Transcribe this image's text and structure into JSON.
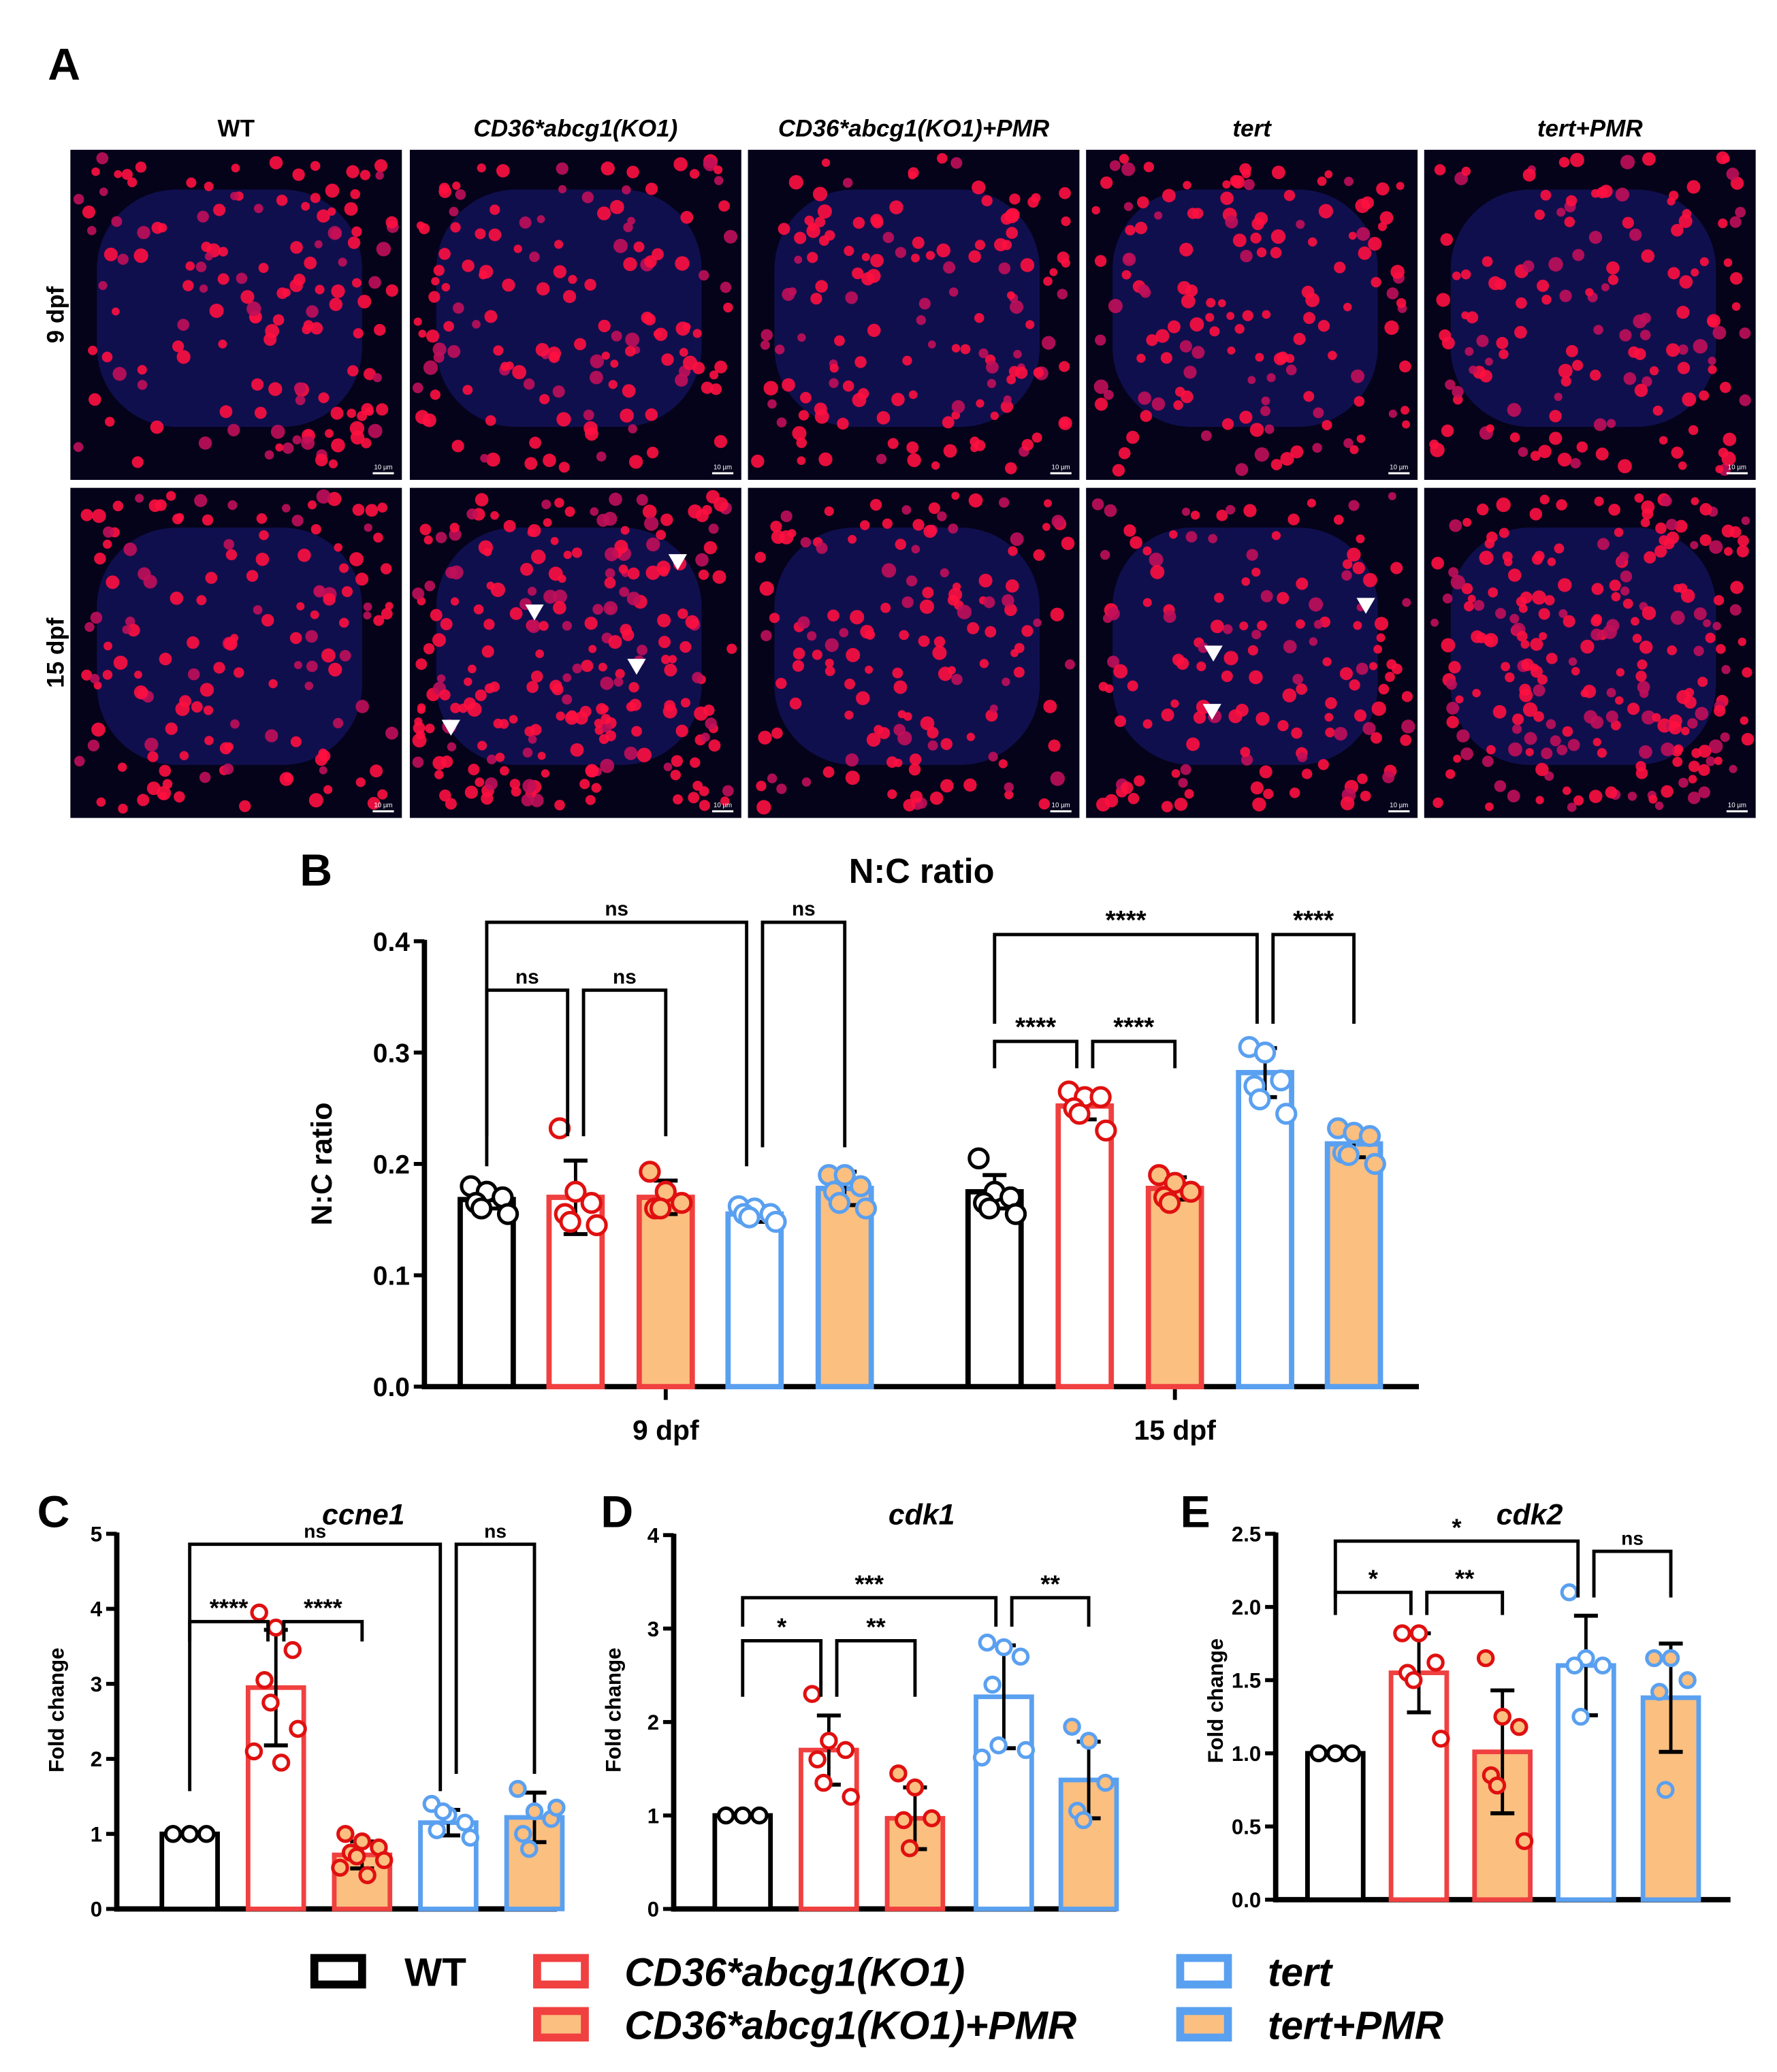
{
  "panel_letters": {
    "a": "A",
    "b": "B",
    "c": "C",
    "d": "D",
    "e": "E"
  },
  "micrographs": {
    "columns": [
      "WT",
      "CD36*abcg1(KO1)",
      "CD36*abcg1(KO1)+PMR",
      "tert",
      "tert+PMR"
    ],
    "column_italic_part": [
      "",
      "CD36*abcg1(KO1)",
      "CD36*abcg1(KO1)",
      "tert",
      "tert"
    ],
    "rows": [
      "9 dpf",
      "15 dpf"
    ],
    "scale_bar": "10 µm",
    "arrowheads_present": [
      [
        false,
        false,
        false,
        false,
        false
      ],
      [
        false,
        true,
        false,
        true,
        false
      ]
    ]
  },
  "groups": [
    {
      "name": "WT",
      "stroke": "#000000",
      "fill": "#ffffff"
    },
    {
      "name": "CD36*abcg1(KO1)",
      "stroke": "#f04040",
      "fill": "#ffffff"
    },
    {
      "name": "CD36*abcg1(KO1)+PMR",
      "stroke": "#f04040",
      "fill": "#fbbf80"
    },
    {
      "name": "tert",
      "stroke": "#5aa0f0",
      "fill": "#ffffff"
    },
    {
      "name": "tert+PMR",
      "stroke": "#5aa0f0",
      "fill": "#fbbf80"
    }
  ],
  "legend": [
    "WT",
    "CD36*abcg1(KO1)",
    "tert",
    "CD36*abcg1(KO1)+PMR",
    "tert+PMR"
  ],
  "chart_data": [
    {
      "id": "B",
      "type": "bar",
      "title": "N:C ratio",
      "ylabel": "N:C ratio",
      "xlabel": "",
      "categories": [
        "9 dpf",
        "15 dpf"
      ],
      "ylim": [
        0,
        0.4
      ],
      "yticks": [
        "0.0",
        "0.1",
        "0.2",
        "0.3",
        "0.4"
      ],
      "series": [
        {
          "name": "WT",
          "means": [
            0.168,
            0.175
          ],
          "err": [
            0.008,
            0.015
          ],
          "points": [
            [
              0.18,
              0.175,
              0.17,
              0.165,
              0.16,
              0.155
            ],
            [
              0.205,
              0.175,
              0.17,
              0.165,
              0.16,
              0.155
            ]
          ]
        },
        {
          "name": "CD36*abcg1(KO1)",
          "means": [
            0.17,
            0.252
          ],
          "err": [
            0.033,
            0.012
          ],
          "points": [
            [
              0.232,
              0.175,
              0.165,
              0.155,
              0.148,
              0.145
            ],
            [
              0.265,
              0.26,
              0.26,
              0.25,
              0.245,
              0.23
            ]
          ]
        },
        {
          "name": "CD36*abcg1(KO1)+PMR",
          "means": [
            0.17,
            0.178
          ],
          "err": [
            0.015,
            0.01
          ],
          "points": [
            [
              0.193,
              0.175,
              0.165,
              0.16,
              0.16
            ],
            [
              0.19,
              0.183,
              0.175,
              0.17,
              0.165
            ]
          ]
        },
        {
          "name": "tert",
          "means": [
            0.155,
            0.282
          ],
          "err": [
            0.007,
            0.022
          ],
          "points": [
            [
              0.162,
              0.16,
              0.155,
              0.155,
              0.152,
              0.148
            ],
            [
              0.305,
              0.3,
              0.275,
              0.27,
              0.258,
              0.245
            ]
          ]
        },
        {
          "name": "tert+PMR",
          "means": [
            0.178,
            0.218
          ],
          "err": [
            0.015,
            0.012
          ],
          "points": [
            [
              0.19,
              0.19,
              0.18,
              0.175,
              0.165,
              0.16
            ],
            [
              0.232,
              0.228,
              0.225,
              0.21,
              0.208,
              0.2
            ]
          ]
        }
      ],
      "brackets": [
        {
          "from": [
            0,
            0
          ],
          "to": [
            0,
            1
          ],
          "level": 0.356,
          "label": "ns"
        },
        {
          "from": [
            0,
            1
          ],
          "to": [
            0,
            2
          ],
          "level": 0.356,
          "label": "ns"
        },
        {
          "from": [
            0,
            0
          ],
          "to": [
            0,
            3
          ],
          "level": 0.417,
          "label": "ns"
        },
        {
          "from": [
            0,
            3
          ],
          "to": [
            0,
            4
          ],
          "level": 0.417,
          "label": "ns"
        },
        {
          "from": [
            1,
            0
          ],
          "to": [
            1,
            3
          ],
          "level": 0.406,
          "label": "****"
        },
        {
          "from": [
            1,
            3
          ],
          "to": [
            1,
            4
          ],
          "level": 0.406,
          "label": "****"
        },
        {
          "from": [
            1,
            0
          ],
          "to": [
            1,
            1
          ],
          "level": 0.31,
          "label": "****"
        },
        {
          "from": [
            1,
            1
          ],
          "to": [
            1,
            2
          ],
          "level": 0.31,
          "label": "****"
        }
      ]
    },
    {
      "id": "C",
      "type": "bar",
      "title": "ccne1",
      "ylabel": "Fold change",
      "ylim": [
        0,
        5
      ],
      "yticks": [
        "0",
        "1",
        "2",
        "3",
        "4",
        "5"
      ],
      "means": [
        1.0,
        2.95,
        0.72,
        1.15,
        1.22
      ],
      "err": [
        0,
        0.77,
        0.18,
        0.17,
        0.33
      ],
      "points": [
        [
          1,
          1,
          1
        ],
        [
          3.95,
          3.75,
          3.45,
          3.05,
          2.75,
          2.4,
          2.1,
          1.95
        ],
        [
          1.0,
          0.9,
          0.82,
          0.75,
          0.7,
          0.65,
          0.55,
          0.45
        ],
        [
          1.4,
          1.25,
          1.15,
          1.05,
          1.3,
          0.95
        ],
        [
          1.6,
          1.3,
          1.2,
          1.0,
          0.8,
          1.35
        ]
      ],
      "brackets": [
        {
          "from": 0,
          "to": 3,
          "level": 4.86,
          "label": "ns"
        },
        {
          "from": 3,
          "to": 4,
          "level": 4.86,
          "label": "ns"
        },
        {
          "from": 0,
          "to": 1,
          "level": 3.83,
          "label": "****"
        },
        {
          "from": 1,
          "to": 2,
          "level": 3.83,
          "label": "****"
        }
      ]
    },
    {
      "id": "D",
      "type": "bar",
      "title": "cdk1",
      "ylabel": "Fold change",
      "ylim": [
        0,
        4
      ],
      "yticks": [
        "0",
        "1",
        "2",
        "3",
        "4"
      ],
      "means": [
        1.0,
        1.7,
        0.97,
        2.27,
        1.38
      ],
      "err": [
        0,
        0.37,
        0.33,
        0.55,
        0.41
      ],
      "points": [
        [
          1,
          1,
          1
        ],
        [
          2.3,
          1.8,
          1.7,
          1.6,
          1.35,
          1.2
        ],
        [
          1.45,
          1.3,
          0.97,
          0.95,
          0.65
        ],
        [
          2.85,
          2.8,
          2.7,
          2.4,
          1.75,
          1.7,
          1.62
        ],
        [
          1.95,
          1.8,
          1.35,
          1.05,
          0.95
        ]
      ],
      "brackets": [
        {
          "from": 0,
          "to": 3,
          "level": 3.33,
          "label": "***"
        },
        {
          "from": 3,
          "to": 4,
          "level": 3.33,
          "label": "**"
        },
        {
          "from": 0,
          "to": 1,
          "level": 2.87,
          "label": "*"
        },
        {
          "from": 1,
          "to": 2,
          "level": 2.87,
          "label": "**"
        }
      ]
    },
    {
      "id": "E",
      "type": "bar",
      "title": "cdk2",
      "ylabel": "Fold change",
      "ylim": [
        0,
        2.5
      ],
      "yticks": [
        "0.0",
        "0.5",
        "1.0",
        "1.5",
        "2.0",
        "2.5"
      ],
      "means": [
        1.0,
        1.55,
        1.01,
        1.6,
        1.38
      ],
      "err": [
        0,
        0.27,
        0.42,
        0.34,
        0.37
      ],
      "points": [
        [
          1,
          1,
          1
        ],
        [
          1.82,
          1.82,
          1.62,
          1.55,
          1.5,
          1.1
        ],
        [
          1.65,
          1.25,
          1.18,
          0.85,
          0.78,
          0.4
        ],
        [
          2.1,
          1.65,
          1.6,
          1.6,
          1.25
        ],
        [
          1.65,
          1.65,
          1.5,
          1.42,
          0.75
        ]
      ],
      "brackets": [
        {
          "from": 0,
          "to": 3,
          "level": 2.45,
          "label": "*"
        },
        {
          "from": 3,
          "to": 4,
          "level": 2.38,
          "label": "ns"
        },
        {
          "from": 0,
          "to": 1,
          "level": 2.1,
          "label": "*"
        },
        {
          "from": 1,
          "to": 2,
          "level": 2.1,
          "label": "**"
        }
      ]
    }
  ]
}
